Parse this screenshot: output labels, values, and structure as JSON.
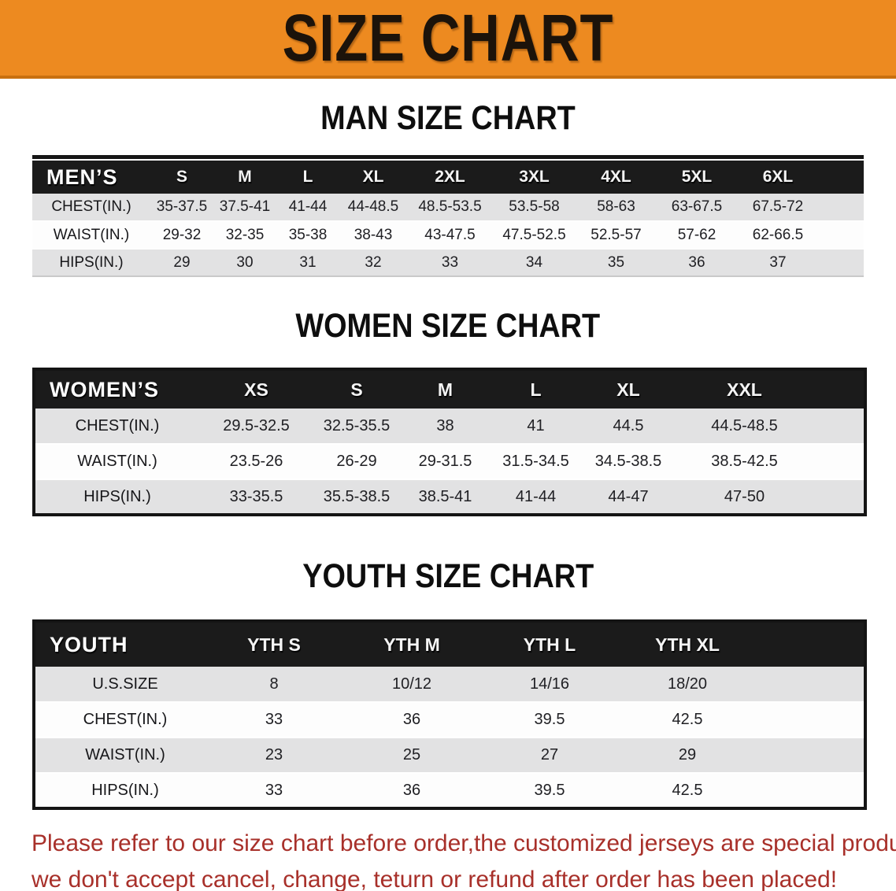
{
  "colors": {
    "banner_bg": "#ED8A20",
    "banner_border": "#C9700F",
    "banner_text": "#1C130A",
    "header_bg": "#1B1B1B",
    "row_gray": "#E2E2E3",
    "note_red": "#A8302A"
  },
  "banner": {
    "title": "SIZE CHART"
  },
  "sections": [
    {
      "heading": "MAN SIZE CHART",
      "corner_label": "MEN’S",
      "size_headers": [
        "S",
        "M",
        "L",
        "XL",
        "2XL",
        "3XL",
        "4XL",
        "5XL",
        "6XL"
      ],
      "rows": [
        {
          "label": "CHEST(IN.)",
          "values": [
            "35-37.5",
            "37.5-41",
            "41-44",
            "44-48.5",
            "48.5-53.5",
            "53.5-58",
            "58-63",
            "63-67.5",
            "67.5-72"
          ]
        },
        {
          "label": "WAIST(IN.)",
          "values": [
            "29-32",
            "32-35",
            "35-38",
            "38-43",
            "43-47.5",
            "47.5-52.5",
            "52.5-57",
            "57-62",
            "62-66.5"
          ]
        },
        {
          "label": "HIPS(IN.)",
          "values": [
            "29",
            "30",
            "31",
            "32",
            "33",
            "34",
            "35",
            "36",
            "37"
          ]
        }
      ]
    },
    {
      "heading": "WOMEN SIZE CHART",
      "corner_label": "WOMEN’S",
      "size_headers": [
        "XS",
        "S",
        "M",
        "L",
        "XL",
        "XXL"
      ],
      "rows": [
        {
          "label": "CHEST(IN.)",
          "values": [
            "29.5-32.5",
            "32.5-35.5",
            "38",
            "41",
            "44.5",
            "44.5-48.5"
          ]
        },
        {
          "label": "WAIST(IN.)",
          "values": [
            "23.5-26",
            "26-29",
            "29-31.5",
            "31.5-34.5",
            "34.5-38.5",
            "38.5-42.5"
          ]
        },
        {
          "label": "HIPS(IN.)",
          "values": [
            "33-35.5",
            "35.5-38.5",
            "38.5-41",
            "41-44",
            "44-47",
            "47-50"
          ]
        }
      ]
    },
    {
      "heading": "YOUTH SIZE CHART",
      "corner_label": "YOUTH",
      "size_headers": [
        "YTH S",
        "YTH M",
        "YTH L",
        "YTH XL"
      ],
      "rows": [
        {
          "label": "U.S.SIZE",
          "values": [
            "8",
            "10/12",
            "14/16",
            "18/20"
          ]
        },
        {
          "label": "CHEST(IN.)",
          "values": [
            "33",
            "36",
            "39.5",
            "42.5"
          ]
        },
        {
          "label": "WAIST(IN.)",
          "values": [
            "23",
            "25",
            "27",
            "29"
          ]
        },
        {
          "label": "HIPS(IN.)",
          "values": [
            "33",
            "36",
            "39.5",
            "42.5"
          ]
        }
      ]
    }
  ],
  "note": {
    "lines": [
      "Please refer to our size chart before order,the customized jerseys are special products,",
      "we don't accept cancel, change, teturn or refund after order has been placed!"
    ]
  }
}
